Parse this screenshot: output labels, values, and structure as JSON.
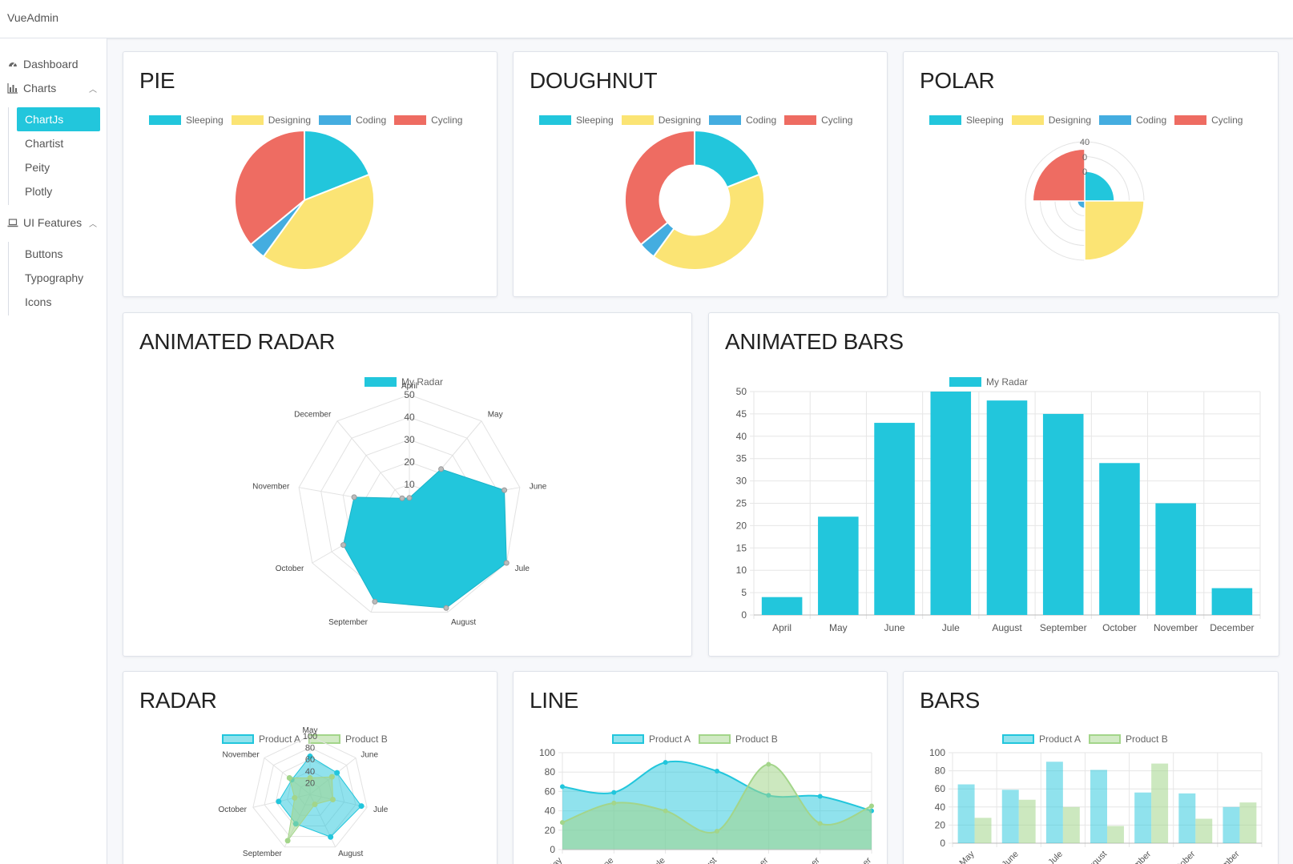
{
  "app": {
    "title": "VueAdmin"
  },
  "sidebar": {
    "dashboard": "Dashboard",
    "charts": "Charts",
    "charts_children": [
      "ChartJs",
      "Chartist",
      "Peity",
      "Plotly"
    ],
    "ui_features": "UI Features",
    "ui_children": [
      "Buttons",
      "Typography",
      "Icons"
    ]
  },
  "colors": {
    "accent": "#22c6dc",
    "sleeping": "#22c6dc",
    "designing": "#fbe474",
    "coding": "#44ade0",
    "cycling": "#ee6c62",
    "productA": "#22c6dc",
    "productB": "#a3d58a"
  },
  "cards": {
    "pie": "PIE",
    "doughnut": "DOUGHNUT",
    "polar": "POLAR",
    "animated_radar": "ANIMATED RADAR",
    "animated_bars": "ANIMATED BARS",
    "radar": "RADAR",
    "line": "LINE",
    "bars": "BARS"
  },
  "chart_data": [
    {
      "id": "pie",
      "type": "pie",
      "categories": [
        "Sleeping",
        "Designing",
        "Coding",
        "Cycling"
      ],
      "values": [
        19,
        41,
        4,
        36
      ]
    },
    {
      "id": "doughnut",
      "type": "pie",
      "categories": [
        "Sleeping",
        "Designing",
        "Coding",
        "Cycling"
      ],
      "values": [
        19,
        41,
        4,
        36
      ]
    },
    {
      "id": "polar",
      "type": "polar",
      "categories": [
        "Sleeping",
        "Designing",
        "Coding",
        "Cycling"
      ],
      "values": [
        20,
        40,
        5,
        35
      ],
      "tick_labels": [
        "40",
        "0",
        "0"
      ]
    },
    {
      "id": "animated_radar",
      "type": "radar",
      "series": [
        {
          "name": "My Radar",
          "values": [
            4,
            22,
            43,
            50,
            48,
            45,
            34,
            25,
            5
          ]
        }
      ],
      "categories": [
        "April",
        "May",
        "June",
        "Jule",
        "August",
        "September",
        "October",
        "November",
        "December"
      ],
      "rmax": 50,
      "ticks": [
        10,
        20,
        30,
        40,
        50
      ]
    },
    {
      "id": "animated_bars",
      "type": "bar",
      "series": [
        {
          "name": "My Radar",
          "values": [
            4,
            22,
            43,
            50,
            48,
            45,
            34,
            25,
            6
          ]
        }
      ],
      "categories": [
        "April",
        "May",
        "June",
        "Jule",
        "August",
        "September",
        "October",
        "November",
        "December"
      ],
      "ylim": [
        0,
        50
      ],
      "ticks": [
        0,
        5,
        10,
        15,
        20,
        25,
        30,
        35,
        40,
        45,
        50
      ]
    },
    {
      "id": "radar",
      "type": "radar",
      "categories": [
        "May",
        "June",
        "Jule",
        "August",
        "September",
        "October",
        "November"
      ],
      "series": [
        {
          "name": "Product A",
          "values": [
            65,
            59,
            90,
            81,
            56,
            55,
            40
          ]
        },
        {
          "name": "Product B",
          "values": [
            28,
            48,
            40,
            19,
            88,
            27,
            45
          ]
        }
      ],
      "rmax": 100,
      "ticks": [
        20,
        40,
        60,
        80,
        100
      ]
    },
    {
      "id": "line",
      "type": "area",
      "categories": [
        "May",
        "June",
        "Jule",
        "August",
        "September",
        "October",
        "November"
      ],
      "series": [
        {
          "name": "Product A",
          "values": [
            65,
            59,
            90,
            81,
            56,
            55,
            40
          ]
        },
        {
          "name": "Product B",
          "values": [
            28,
            48,
            40,
            19,
            88,
            27,
            45
          ]
        }
      ],
      "ylim": [
        0,
        100
      ],
      "ticks": [
        0,
        20,
        40,
        60,
        80,
        100
      ]
    },
    {
      "id": "bars",
      "type": "bar",
      "categories": [
        "May",
        "June",
        "Jule",
        "August",
        "September",
        "October",
        "November"
      ],
      "series": [
        {
          "name": "Product A",
          "values": [
            65,
            59,
            90,
            81,
            56,
            55,
            40
          ]
        },
        {
          "name": "Product B",
          "values": [
            28,
            48,
            40,
            19,
            88,
            27,
            45
          ]
        }
      ],
      "ylim": [
        0,
        100
      ],
      "ticks": [
        0,
        20,
        40,
        60,
        80,
        100
      ]
    }
  ]
}
